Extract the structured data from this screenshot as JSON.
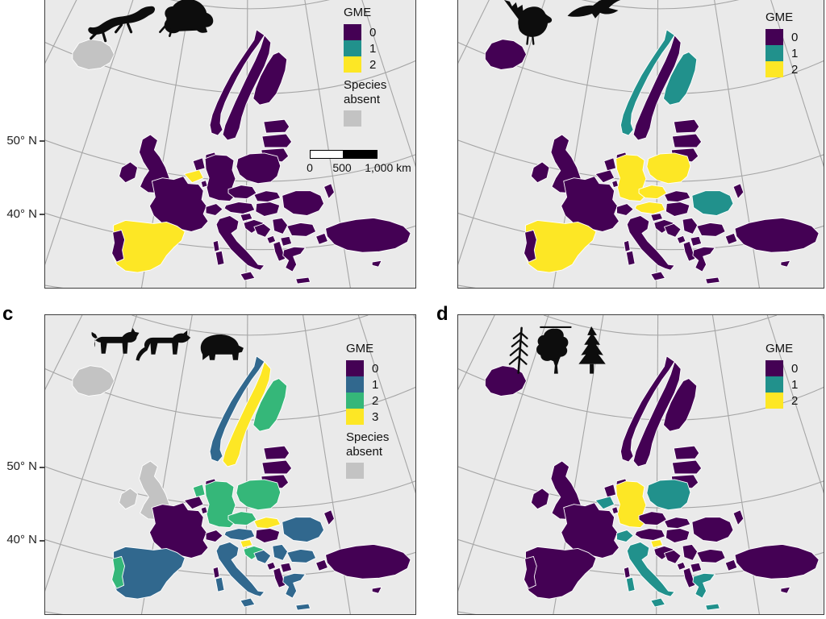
{
  "figure": {
    "panel_labels": {
      "c": "c",
      "d": "d"
    },
    "lat_labels": [
      "50° N",
      "40° N"
    ]
  },
  "colors": {
    "ocean": "#eaeaea",
    "graticule": "#a5a5a5",
    "country_border": "#ffffff",
    "panel_border": "#3d3d3d",
    "silhouette": "#0d0d0d",
    "species_absent": "#c3c3c3",
    "viridis_purple": "#440154",
    "viridis_blue": "#31688e",
    "viridis_teal": "#21918c",
    "viridis_green": "#35b779",
    "viridis_yellow": "#fde725"
  },
  "panels": [
    {
      "id": "a",
      "species_icons": [
        "salamander",
        "toad"
      ],
      "legend": {
        "title": "GME",
        "entries": [
          {
            "value": "0",
            "color": "#440154"
          },
          {
            "value": "1",
            "color": "#21918c"
          },
          {
            "value": "2",
            "color": "#fde725"
          }
        ],
        "absent": {
          "label": "Species absent",
          "color": "#c3c3c3"
        }
      },
      "scalebar": {
        "start": "0",
        "mid": "500",
        "end": "1,000 km"
      },
      "classes": {
        "1": [],
        "2": [
          "ES",
          "BE"
        ],
        "absent": [
          "IS"
        ]
      }
    },
    {
      "id": "b",
      "species_icons": [
        "capercaillie",
        "eagle"
      ],
      "legend": {
        "title": "GME",
        "entries": [
          {
            "value": "0",
            "color": "#440154"
          },
          {
            "value": "1",
            "color": "#21918c"
          },
          {
            "value": "2",
            "color": "#fde725"
          }
        ]
      },
      "classes": {
        "1": [
          "NO",
          "FI",
          "RO"
        ],
        "2": [
          "DE",
          "PL",
          "CZ",
          "AT",
          "ES"
        ]
      }
    },
    {
      "id": "c",
      "species_icons": [
        "lynx",
        "wolf",
        "bear"
      ],
      "legend": {
        "title": "GME",
        "entries": [
          {
            "value": "0",
            "color": "#440154"
          },
          {
            "value": "1",
            "color": "#31688e"
          },
          {
            "value": "2",
            "color": "#35b779"
          },
          {
            "value": "3",
            "color": "#fde725"
          }
        ],
        "absent": {
          "label": "Species absent",
          "color": "#c3c3c3"
        }
      },
      "classes": {
        "1": [
          "NO",
          "ES",
          "IT",
          "AT",
          "RO",
          "BG",
          "RS",
          "BA",
          "GR"
        ],
        "2": [
          "FI",
          "DE",
          "PL",
          "CZ",
          "PT",
          "HR",
          "NL"
        ],
        "3": [
          "SE",
          "SK",
          "SI"
        ],
        "absent": [
          "IS",
          "GB",
          "IE"
        ]
      }
    },
    {
      "id": "d",
      "species_icons": [
        "fir-branch",
        "oak-tree",
        "pine-tree"
      ],
      "legend": {
        "title": "GME",
        "entries": [
          {
            "value": "0",
            "color": "#440154"
          },
          {
            "value": "1",
            "color": "#21918c"
          },
          {
            "value": "2",
            "color": "#fde725"
          }
        ]
      },
      "classes": {
        "1": [
          "PL",
          "IT",
          "GR",
          "CH",
          "BE"
        ],
        "2": [
          "DE",
          "SI"
        ]
      }
    }
  ]
}
